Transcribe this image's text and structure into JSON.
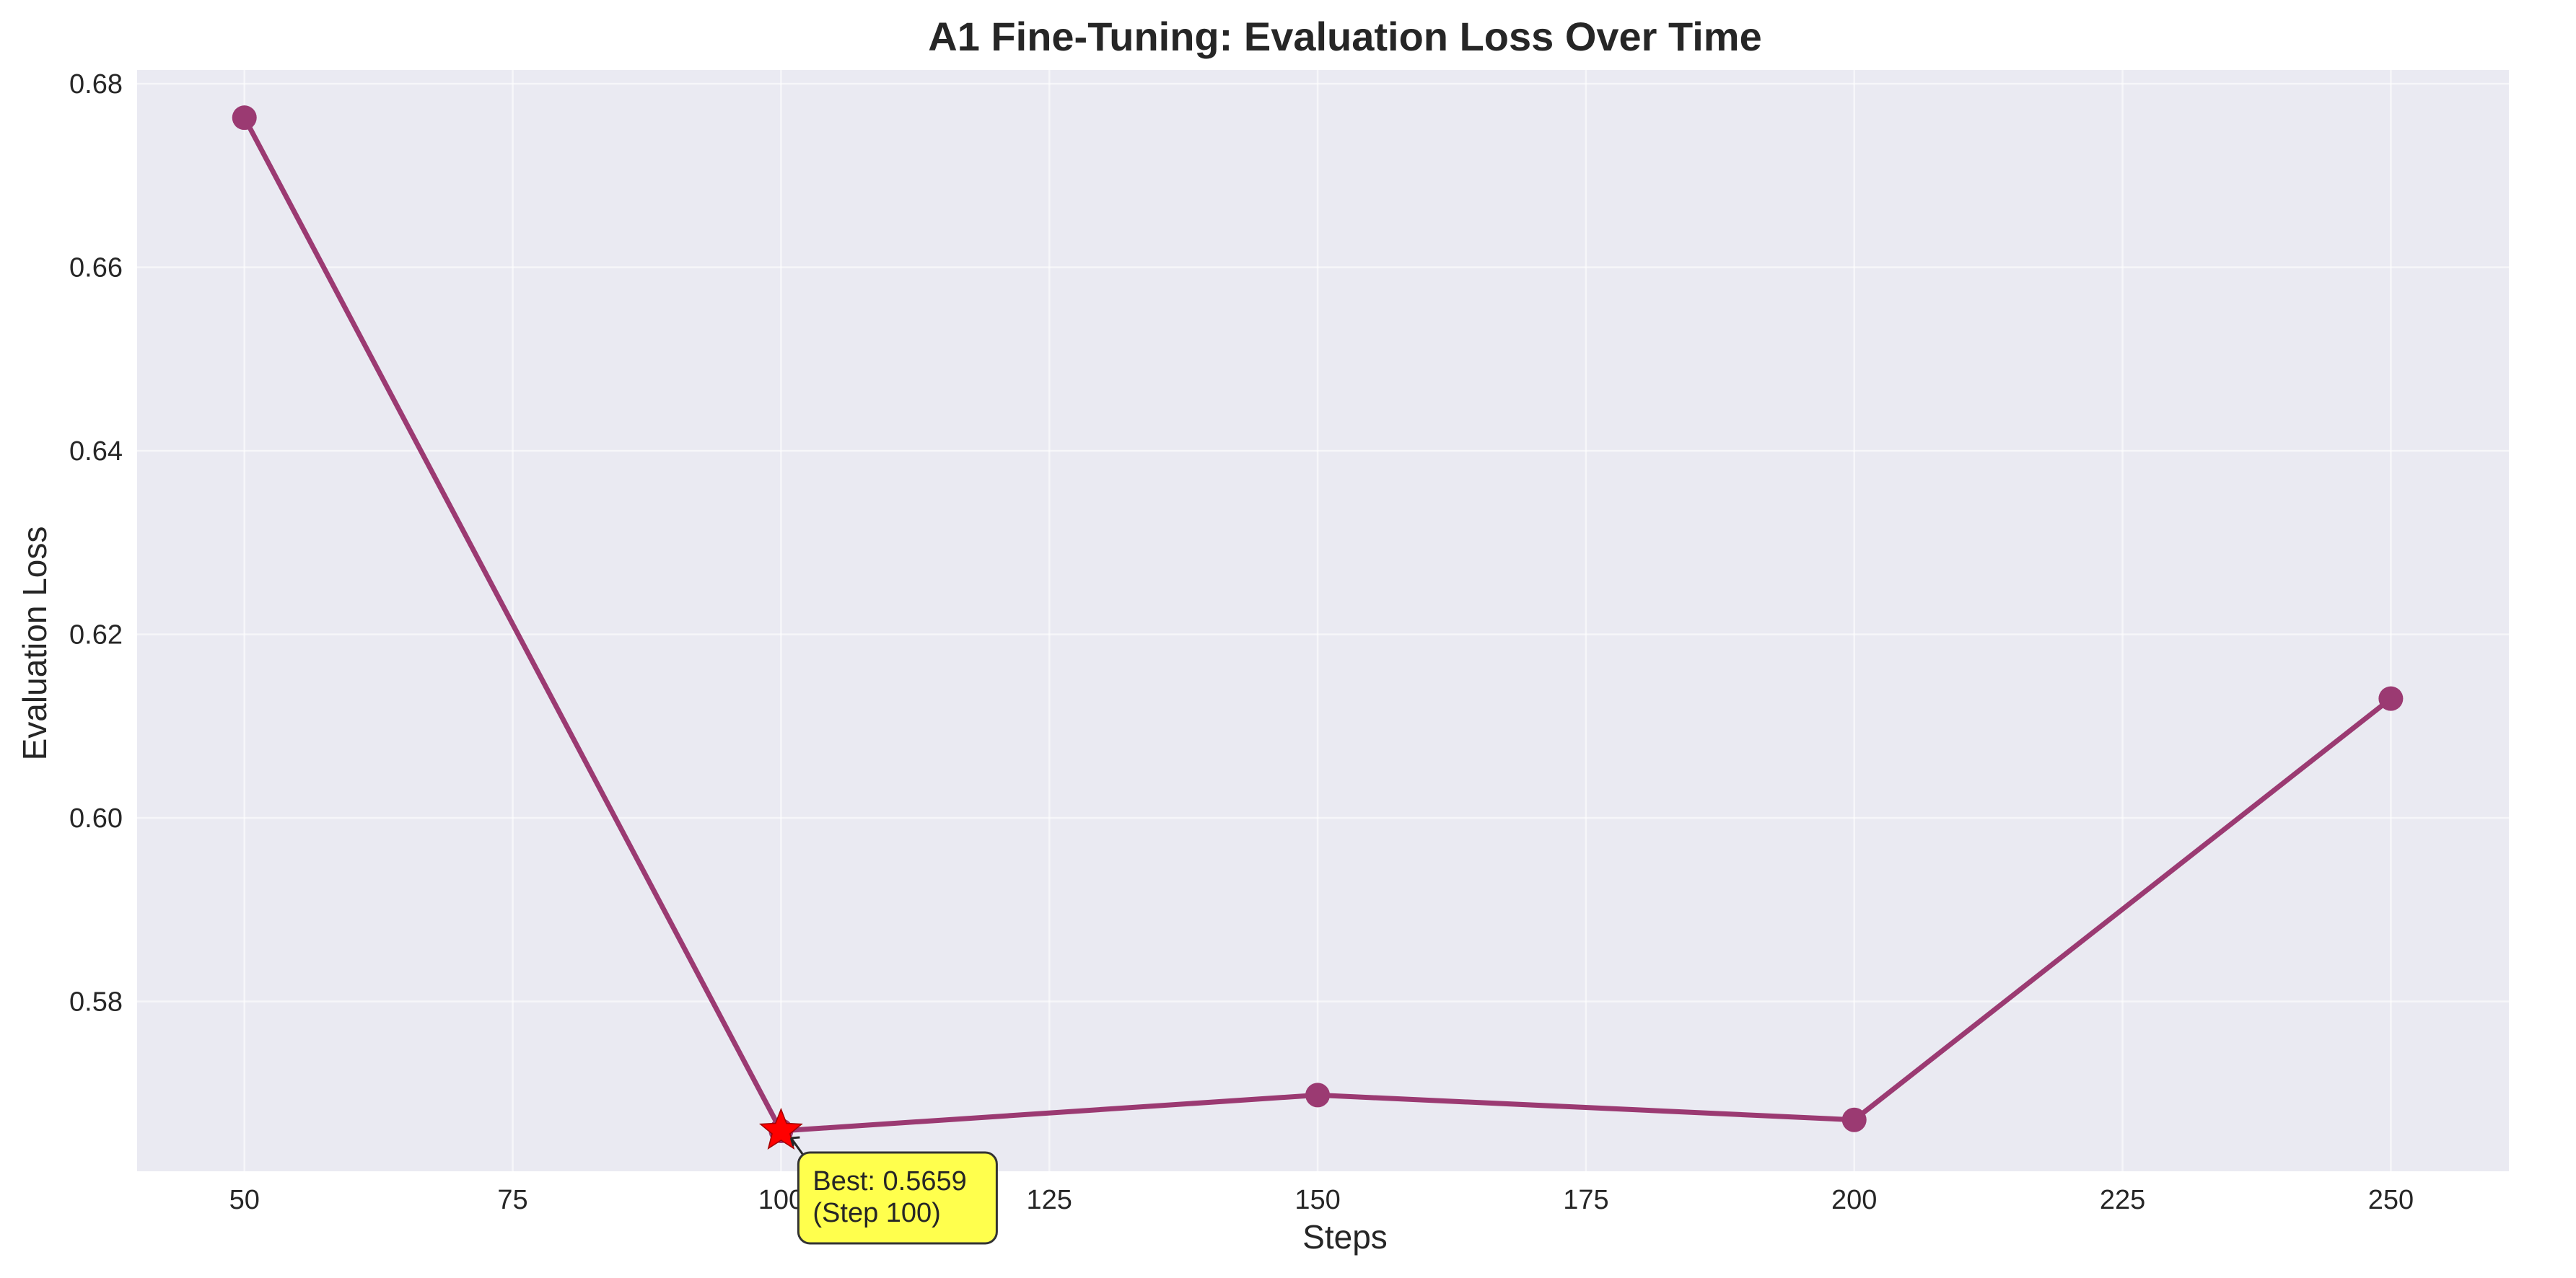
{
  "chart_data": {
    "type": "line",
    "title": "A1 Fine-Tuning: Evaluation Loss Over Time",
    "xlabel": "Steps",
    "ylabel": "Evaluation Loss",
    "x": [
      50,
      100,
      150,
      200,
      250
    ],
    "series": [
      {
        "values": [
          0.6763,
          0.5659,
          0.5698,
          0.5671,
          0.613
        ]
      }
    ],
    "xlim": [
      40,
      261
    ],
    "ylim": [
      0.5615,
      0.6815
    ],
    "xticks": [
      50,
      75,
      100,
      125,
      150,
      175,
      200,
      225,
      250
    ],
    "xtick_labels": [
      "50",
      "75",
      "100",
      "125",
      "150",
      "175",
      "200",
      "225",
      "250"
    ],
    "yticks": [
      0.58,
      0.6,
      0.62,
      0.64,
      0.66,
      0.68
    ],
    "ytick_labels": [
      "0.58",
      "0.60",
      "0.62",
      "0.64",
      "0.66",
      "0.68"
    ],
    "grid": true,
    "best_point": {
      "x": 100,
      "y": 0.5659
    },
    "annotation": {
      "line1": "Best: 0.5659",
      "line2": "(Step 100)"
    },
    "colors": {
      "line": "#9b3a72",
      "marker": "#9b3a72",
      "best": "#ff0000",
      "background": "#eaeaf2",
      "grid": "#ffffff",
      "annotation_fill": "#ffff4d"
    }
  }
}
